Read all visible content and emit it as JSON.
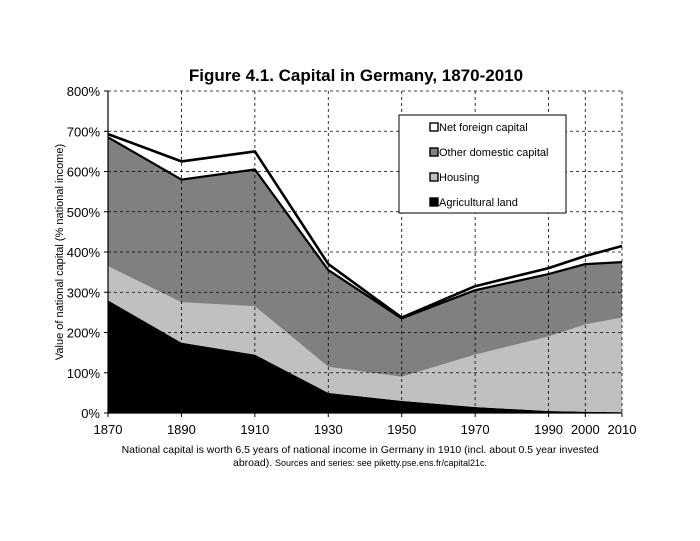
{
  "chart_data": {
    "type": "area",
    "title": "Figure 4.1. Capital in Germany, 1870-2010",
    "ylabel": "Value of national capital (% national income)",
    "xlabel": "",
    "x": [
      1870,
      1890,
      1910,
      1930,
      1950,
      1970,
      1990,
      2000,
      2010
    ],
    "x_ticks": [
      "1870",
      "1890",
      "1910",
      "1930",
      "1950",
      "1970",
      "1990",
      "2000",
      "2010"
    ],
    "y_ticks": [
      "0%",
      "100%",
      "200%",
      "300%",
      "400%",
      "500%",
      "600%",
      "700%",
      "800%"
    ],
    "ylim": [
      0,
      800
    ],
    "grid": true,
    "stacked": true,
    "legend_position": "top-right",
    "series": [
      {
        "name": "Agricultural land",
        "color": "#000000",
        "values": [
          280,
          175,
          145,
          50,
          30,
          15,
          5,
          3,
          2
        ]
      },
      {
        "name": "Housing",
        "color": "#c0c0c0",
        "values": [
          85,
          100,
          120,
          65,
          60,
          130,
          185,
          217,
          235
        ]
      },
      {
        "name": "Other domestic capital",
        "color": "#808080",
        "values": [
          320,
          305,
          340,
          240,
          145,
          160,
          155,
          150,
          138
        ]
      },
      {
        "name": "Net foreign capital",
        "color": "#ffffff",
        "values": [
          8,
          45,
          45,
          15,
          2,
          10,
          15,
          20,
          40
        ]
      }
    ],
    "legend_order": [
      "Net foreign capital",
      "Other domestic capital",
      "Housing",
      "Agricultural land"
    ]
  },
  "caption": {
    "main": "National capital is worth 6.5 years of national income in Germany in 1910 (incl. about 0.5 year invested abroad).",
    "sources": "Sources and series: see piketty.pse.ens.fr/capital21c."
  }
}
